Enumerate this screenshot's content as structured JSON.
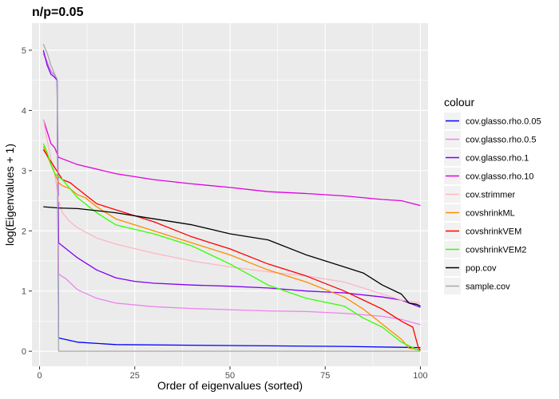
{
  "chart_data": {
    "type": "line",
    "title": "n/p=0.05",
    "xlabel": "Order of eigenvalues (sorted)",
    "ylabel": "log(Eigenvalues + 1)",
    "xlim": [
      -2,
      102
    ],
    "ylim": [
      -0.25,
      5.45
    ],
    "x_ticks": [
      0,
      25,
      50,
      75,
      100
    ],
    "y_ticks": [
      0,
      1,
      2,
      3,
      4,
      5
    ],
    "grid": true,
    "legend": {
      "title": "colour",
      "position": "right"
    },
    "series": [
      {
        "name": "cov.glasso.rho.0.05",
        "color": "#0000FF",
        "points": [
          [
            1,
            4.95
          ],
          [
            2,
            4.8
          ],
          [
            3,
            4.65
          ],
          [
            4,
            4.58
          ],
          [
            4.6,
            4.5
          ],
          [
            5,
            0.22
          ],
          [
            10,
            0.15
          ],
          [
            20,
            0.11
          ],
          [
            40,
            0.1
          ],
          [
            60,
            0.09
          ],
          [
            80,
            0.08
          ],
          [
            100,
            0.06
          ]
        ]
      },
      {
        "name": "cov.glasso.rho.0.5",
        "color": "#EE82EE",
        "points": [
          [
            1,
            4.95
          ],
          [
            2,
            4.8
          ],
          [
            3,
            4.65
          ],
          [
            4,
            4.58
          ],
          [
            4.6,
            4.5
          ],
          [
            5,
            1.28
          ],
          [
            7,
            1.2
          ],
          [
            10,
            1.02
          ],
          [
            15,
            0.88
          ],
          [
            20,
            0.8
          ],
          [
            30,
            0.74
          ],
          [
            40,
            0.71
          ],
          [
            50,
            0.69
          ],
          [
            60,
            0.67
          ],
          [
            70,
            0.66
          ],
          [
            80,
            0.63
          ],
          [
            90,
            0.58
          ],
          [
            95,
            0.53
          ],
          [
            100,
            0.44
          ]
        ]
      },
      {
        "name": "cov.glasso.rho.1",
        "color": "#8000F0",
        "points": [
          [
            1,
            5.0
          ],
          [
            2,
            4.75
          ],
          [
            3,
            4.6
          ],
          [
            4,
            4.55
          ],
          [
            4.6,
            4.5
          ],
          [
            5,
            1.8
          ],
          [
            7,
            1.7
          ],
          [
            10,
            1.55
          ],
          [
            15,
            1.35
          ],
          [
            20,
            1.22
          ],
          [
            25,
            1.16
          ],
          [
            30,
            1.13
          ],
          [
            40,
            1.1
          ],
          [
            50,
            1.08
          ],
          [
            60,
            1.05
          ],
          [
            70,
            1.0
          ],
          [
            80,
            0.97
          ],
          [
            90,
            0.9
          ],
          [
            95,
            0.85
          ],
          [
            100,
            0.73
          ]
        ]
      },
      {
        "name": "cov.glasso.rho.10",
        "color": "#E000E0",
        "points": [
          [
            1,
            3.85
          ],
          [
            2,
            3.65
          ],
          [
            3,
            3.45
          ],
          [
            4,
            3.38
          ],
          [
            5,
            3.22
          ],
          [
            10,
            3.1
          ],
          [
            20,
            2.95
          ],
          [
            30,
            2.85
          ],
          [
            40,
            2.78
          ],
          [
            50,
            2.72
          ],
          [
            60,
            2.65
          ],
          [
            70,
            2.62
          ],
          [
            80,
            2.58
          ],
          [
            90,
            2.52
          ],
          [
            95,
            2.5
          ],
          [
            100,
            2.42
          ]
        ]
      },
      {
        "name": "cov.strimmer",
        "color": "#FFB6C1",
        "points": [
          [
            1,
            3.85
          ],
          [
            2,
            3.5
          ],
          [
            3,
            3.2
          ],
          [
            4,
            2.95
          ],
          [
            5,
            2.5
          ],
          [
            6,
            2.3
          ],
          [
            8,
            2.15
          ],
          [
            10,
            2.05
          ],
          [
            15,
            1.88
          ],
          [
            20,
            1.78
          ],
          [
            30,
            1.63
          ],
          [
            40,
            1.5
          ],
          [
            50,
            1.4
          ],
          [
            60,
            1.32
          ],
          [
            70,
            1.25
          ],
          [
            80,
            1.15
          ],
          [
            90,
            0.95
          ],
          [
            95,
            0.85
          ],
          [
            100,
            0.8
          ]
        ]
      },
      {
        "name": "covshrinkML",
        "color": "#FF8C00",
        "points": [
          [
            1,
            3.4
          ],
          [
            2,
            3.25
          ],
          [
            3,
            3.1
          ],
          [
            4,
            2.95
          ],
          [
            5,
            2.8
          ],
          [
            6,
            2.75
          ],
          [
            8,
            2.7
          ],
          [
            10,
            2.6
          ],
          [
            12,
            2.55
          ],
          [
            15,
            2.4
          ],
          [
            20,
            2.2
          ],
          [
            30,
            2.0
          ],
          [
            40,
            1.8
          ],
          [
            50,
            1.6
          ],
          [
            60,
            1.35
          ],
          [
            70,
            1.15
          ],
          [
            80,
            0.9
          ],
          [
            85,
            0.7
          ],
          [
            90,
            0.45
          ],
          [
            95,
            0.2
          ],
          [
            97,
            0.05
          ],
          [
            100,
            0.02
          ]
        ]
      },
      {
        "name": "covshrinkVEM",
        "color": "#FF0000",
        "points": [
          [
            1,
            3.35
          ],
          [
            2,
            3.25
          ],
          [
            3,
            3.15
          ],
          [
            4,
            3.05
          ],
          [
            5,
            2.95
          ],
          [
            6,
            2.85
          ],
          [
            8,
            2.8
          ],
          [
            10,
            2.7
          ],
          [
            15,
            2.45
          ],
          [
            20,
            2.35
          ],
          [
            30,
            2.15
          ],
          [
            40,
            1.9
          ],
          [
            50,
            1.7
          ],
          [
            60,
            1.45
          ],
          [
            70,
            1.25
          ],
          [
            80,
            1.0
          ],
          [
            85,
            0.85
          ],
          [
            90,
            0.7
          ],
          [
            95,
            0.5
          ],
          [
            98,
            0.4
          ],
          [
            99.5,
            0.05
          ],
          [
            100,
            0.02
          ]
        ]
      },
      {
        "name": "covshrinkVEM2",
        "color": "#33FF00",
        "points": [
          [
            1,
            3.45
          ],
          [
            2,
            3.3
          ],
          [
            3,
            3.1
          ],
          [
            4,
            2.95
          ],
          [
            5,
            2.9
          ],
          [
            6,
            2.85
          ],
          [
            8,
            2.7
          ],
          [
            10,
            2.55
          ],
          [
            15,
            2.3
          ],
          [
            20,
            2.1
          ],
          [
            30,
            1.95
          ],
          [
            40,
            1.75
          ],
          [
            50,
            1.45
          ],
          [
            60,
            1.1
          ],
          [
            70,
            0.88
          ],
          [
            80,
            0.75
          ],
          [
            85,
            0.55
          ],
          [
            90,
            0.4
          ],
          [
            95,
            0.15
          ],
          [
            100,
            0.0
          ]
        ]
      },
      {
        "name": "pop.cov",
        "color": "#000000",
        "points": [
          [
            1,
            2.4
          ],
          [
            5,
            2.38
          ],
          [
            10,
            2.37
          ],
          [
            20,
            2.3
          ],
          [
            30,
            2.2
          ],
          [
            40,
            2.1
          ],
          [
            50,
            1.95
          ],
          [
            60,
            1.85
          ],
          [
            70,
            1.6
          ],
          [
            80,
            1.4
          ],
          [
            85,
            1.3
          ],
          [
            90,
            1.1
          ],
          [
            95,
            0.95
          ],
          [
            97,
            0.8
          ],
          [
            99,
            0.78
          ],
          [
            100,
            0.75
          ]
        ]
      },
      {
        "name": "sample.cov",
        "color": "#A9A9A9",
        "points": [
          [
            1,
            5.1
          ],
          [
            2,
            4.95
          ],
          [
            3,
            4.75
          ],
          [
            4,
            4.6
          ],
          [
            4.6,
            4.52
          ],
          [
            5,
            0.0
          ],
          [
            10,
            0.0
          ],
          [
            50,
            0.0
          ],
          [
            100,
            0.0
          ]
        ]
      }
    ]
  }
}
